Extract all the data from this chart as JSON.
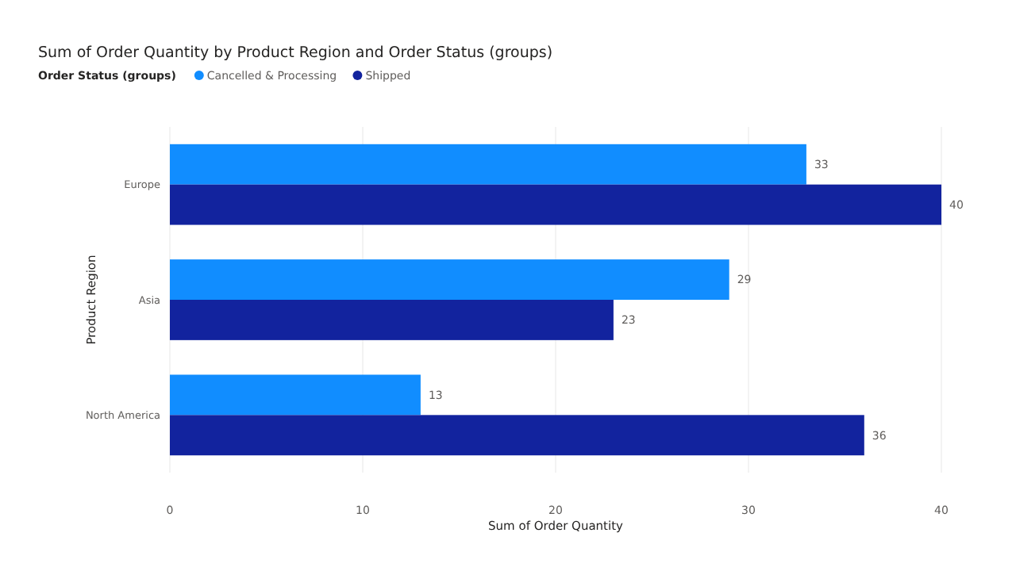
{
  "chart_data": {
    "type": "bar",
    "orientation": "horizontal",
    "title": "Sum of Order Quantity by Product Region and Order Status (groups)",
    "legend_title": "Order Status (groups)",
    "xlabel": "Sum of Order Quantity",
    "ylabel": "Product Region",
    "categories": [
      "Europe",
      "Asia",
      "North America"
    ],
    "series": [
      {
        "name": "Cancelled & Processing",
        "color": "#118dff",
        "values": [
          33,
          29,
          13
        ]
      },
      {
        "name": "Shipped",
        "color": "#12239e",
        "values": [
          40,
          23,
          36
        ]
      }
    ],
    "xlim": [
      0,
      40
    ],
    "xticks": [
      0,
      10,
      20,
      30,
      40
    ],
    "grid": "x",
    "legend": "top left",
    "data_labels": true
  }
}
